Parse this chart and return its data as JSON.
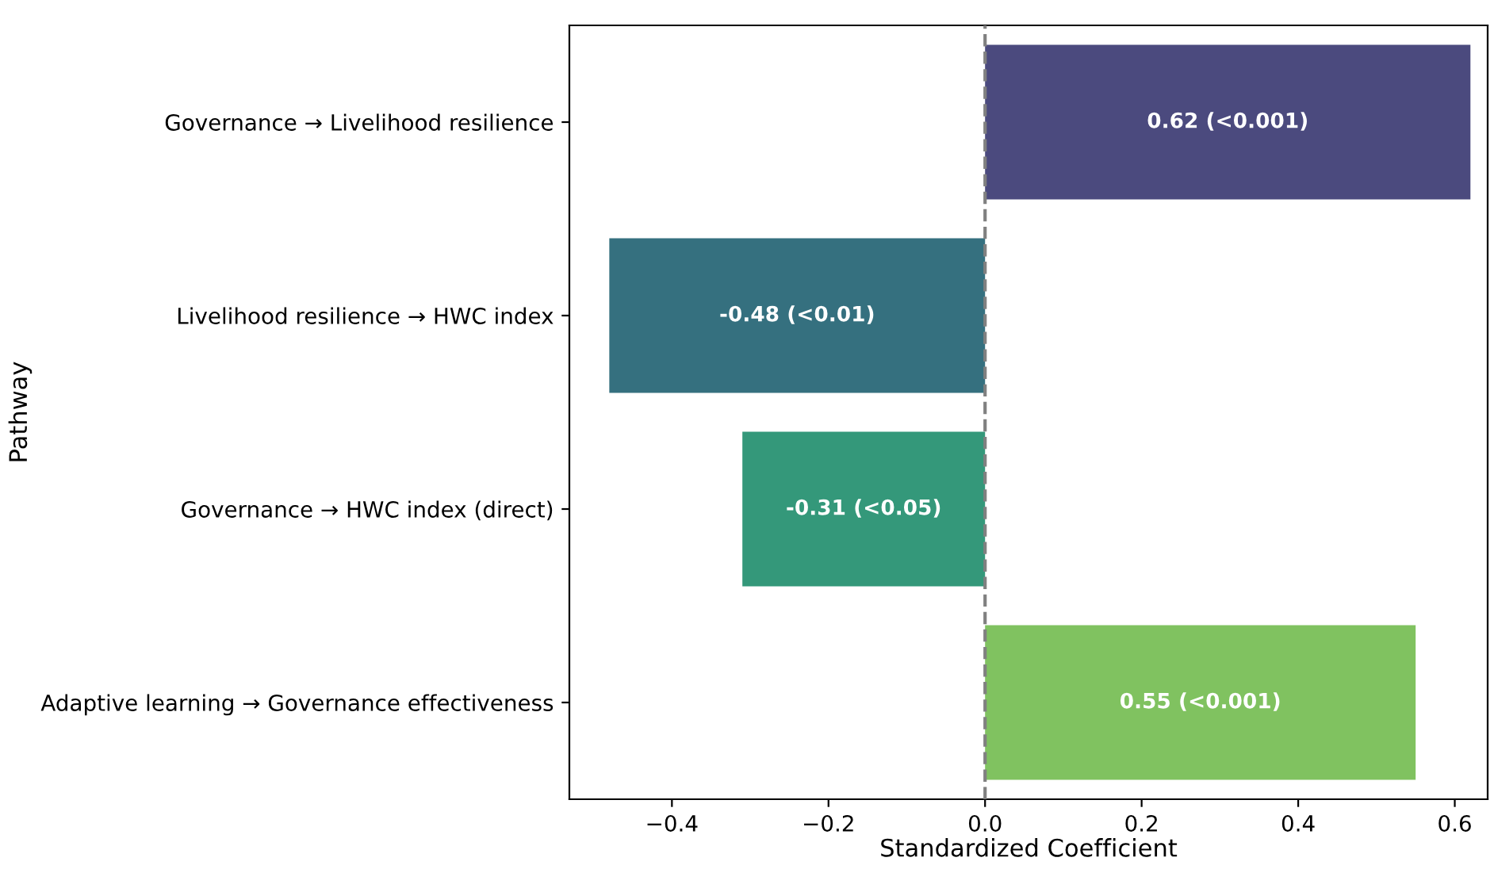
{
  "chart_data": {
    "type": "bar",
    "orientation": "horizontal",
    "xlabel": "Standardized Coefficient",
    "ylabel": "Pathway",
    "categories": [
      "Governance → Livelihood resilience",
      "Livelihood resilience → HWC index",
      "Governance → HWC index (direct)",
      "Adaptive learning → Governance effectiveness"
    ],
    "values": [
      0.62,
      -0.48,
      -0.31,
      0.55
    ],
    "colors": [
      "#4b4a7e",
      "#35707f",
      "#34987a",
      "#80c260"
    ],
    "value_labels": [
      "0.62 (<0.001)",
      "-0.48 (<0.01)",
      "-0.31 (<0.05)",
      "0.55 (<0.001)"
    ],
    "xlim": [
      -0.531,
      0.642
    ],
    "xticks": [
      {
        "value": -0.4,
        "label": "−0.4"
      },
      {
        "value": -0.2,
        "label": "−0.2"
      },
      {
        "value": 0.0,
        "label": "0.0"
      },
      {
        "value": 0.2,
        "label": "0.2"
      },
      {
        "value": 0.4,
        "label": "0.4"
      },
      {
        "value": 0.6,
        "label": "0.6"
      }
    ],
    "ref_lines": [
      {
        "axis": "x",
        "value": 0,
        "color": "#808080",
        "line_style": "dashed"
      }
    ],
    "grid": false,
    "legend": false
  }
}
